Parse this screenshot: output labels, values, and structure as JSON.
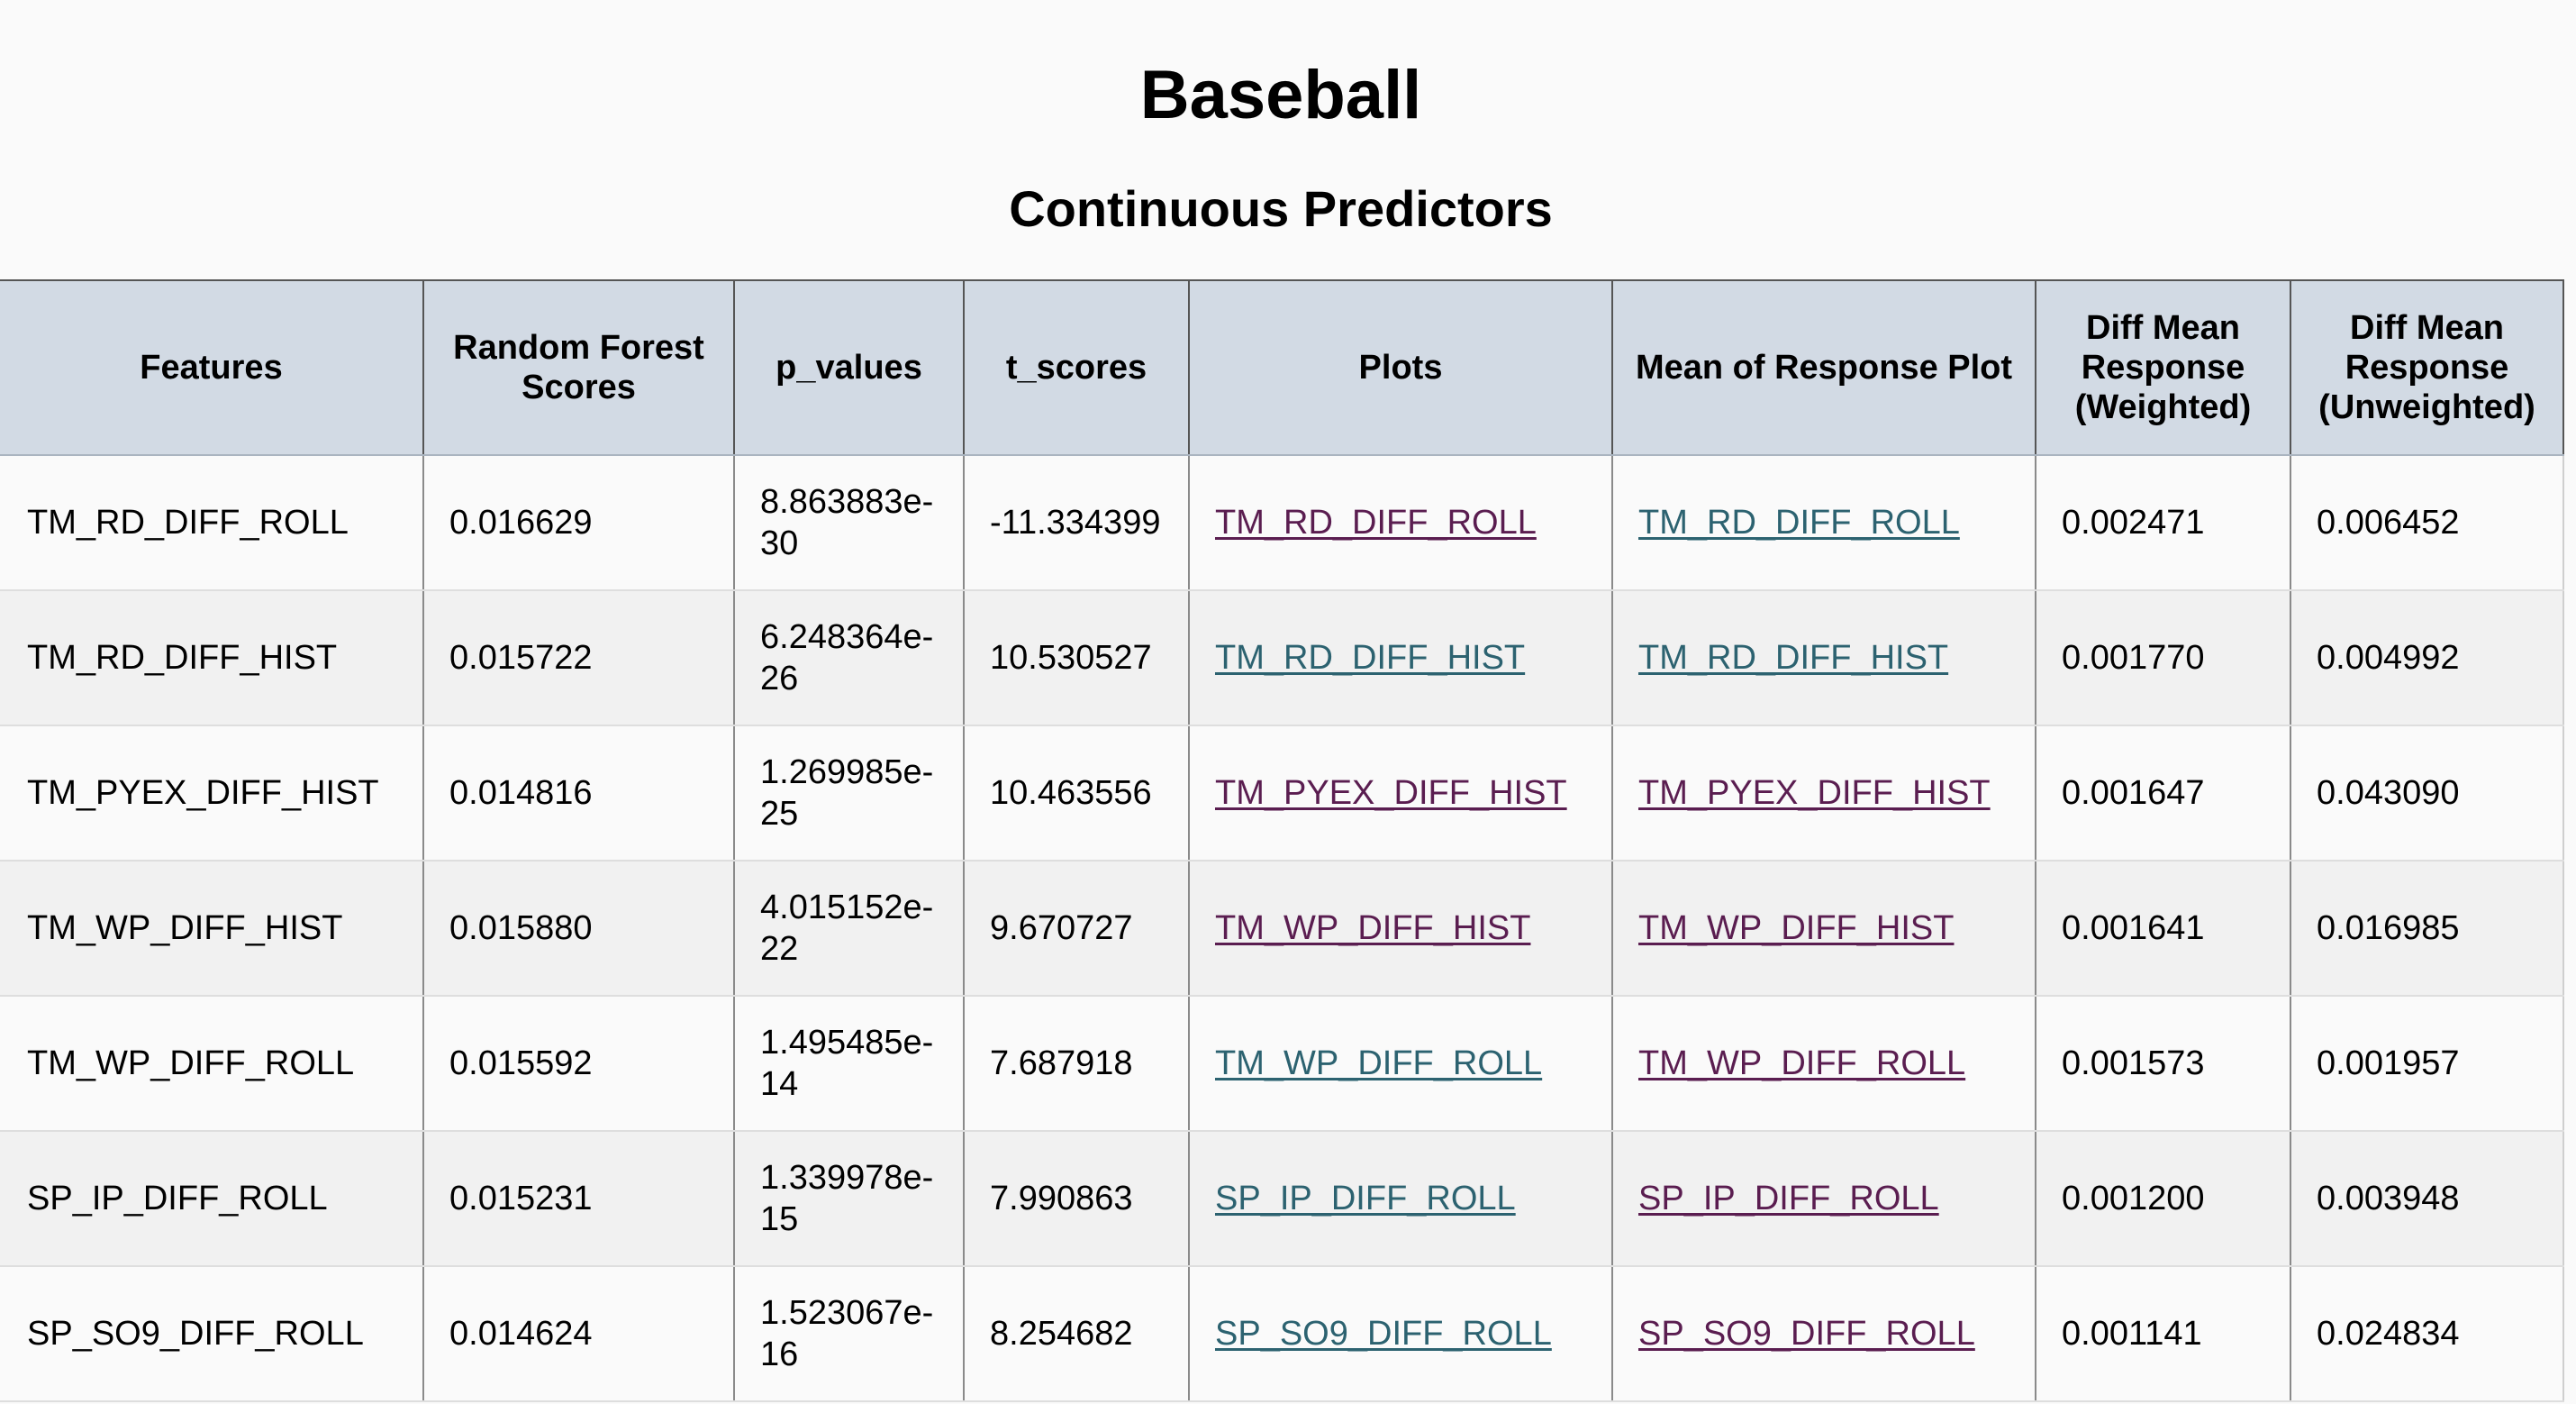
{
  "page": {
    "title": "Baseball",
    "section_title": "Continuous Predictors"
  },
  "colors": {
    "header_background": "#d2dae4",
    "link_unvisited": "#2c6270",
    "link_visited": "#5a1d50"
  },
  "table": {
    "headers": [
      "Features",
      "Random Forest Scores",
      "p_values",
      "t_scores",
      "Plots",
      "Mean of Response Plot",
      "Diff Mean Response (Weighted)",
      "Diff Mean Response (Unweighted)"
    ],
    "rows": [
      {
        "feature": "TM_RD_DIFF_ROLL",
        "rf_score": "0.016629",
        "p_value": "8.863883e-30",
        "t_score": "-11.334399",
        "plot": "TM_RD_DIFF_ROLL",
        "plot_link_style": "plum",
        "mor_plot": "TM_RD_DIFF_ROLL",
        "mor_link_style": "teal",
        "diff_weighted": "0.002471",
        "diff_unweighted": "0.006452"
      },
      {
        "feature": "TM_RD_DIFF_HIST",
        "rf_score": "0.015722",
        "p_value": "6.248364e-26",
        "t_score": "10.530527",
        "plot": "TM_RD_DIFF_HIST",
        "plot_link_style": "teal",
        "mor_plot": "TM_RD_DIFF_HIST",
        "mor_link_style": "teal",
        "diff_weighted": "0.001770",
        "diff_unweighted": "0.004992"
      },
      {
        "feature": "TM_PYEX_DIFF_HIST",
        "rf_score": "0.014816",
        "p_value": "1.269985e-25",
        "t_score": "10.463556",
        "plot": "TM_PYEX_DIFF_HIST",
        "plot_link_style": "plum",
        "mor_plot": "TM_PYEX_DIFF_HIST",
        "mor_link_style": "plum",
        "diff_weighted": "0.001647",
        "diff_unweighted": "0.043090"
      },
      {
        "feature": "TM_WP_DIFF_HIST",
        "rf_score": "0.015880",
        "p_value": "4.015152e-22",
        "t_score": "9.670727",
        "plot": "TM_WP_DIFF_HIST",
        "plot_link_style": "plum",
        "mor_plot": "TM_WP_DIFF_HIST",
        "mor_link_style": "plum",
        "diff_weighted": "0.001641",
        "diff_unweighted": "0.016985"
      },
      {
        "feature": "TM_WP_DIFF_ROLL",
        "rf_score": "0.015592",
        "p_value": "1.495485e-14",
        "t_score": "7.687918",
        "plot": "TM_WP_DIFF_ROLL",
        "plot_link_style": "teal",
        "mor_plot": "TM_WP_DIFF_ROLL",
        "mor_link_style": "plum",
        "diff_weighted": "0.001573",
        "diff_unweighted": "0.001957"
      },
      {
        "feature": "SP_IP_DIFF_ROLL",
        "rf_score": "0.015231",
        "p_value": "1.339978e-15",
        "t_score": "7.990863",
        "plot": "SP_IP_DIFF_ROLL",
        "plot_link_style": "teal",
        "mor_plot": "SP_IP_DIFF_ROLL",
        "mor_link_style": "plum",
        "diff_weighted": "0.001200",
        "diff_unweighted": "0.003948"
      },
      {
        "feature": "SP_SO9_DIFF_ROLL",
        "rf_score": "0.014624",
        "p_value": "1.523067e-16",
        "t_score": "8.254682",
        "plot": "SP_SO9_DIFF_ROLL",
        "plot_link_style": "teal",
        "mor_plot": "SP_SO9_DIFF_ROLL",
        "mor_link_style": "plum",
        "diff_weighted": "0.001141",
        "diff_unweighted": "0.024834"
      }
    ]
  }
}
